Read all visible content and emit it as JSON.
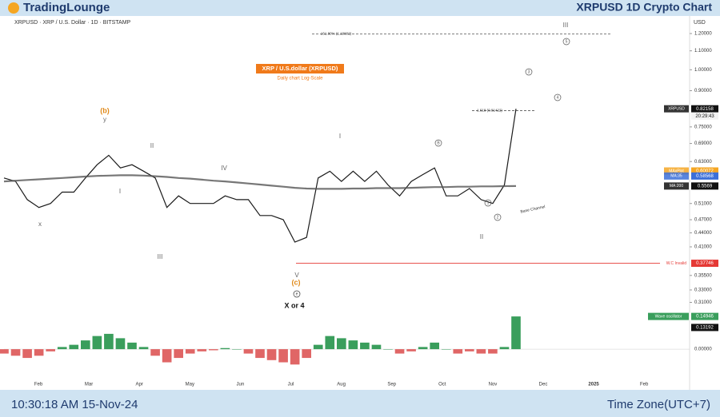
{
  "header": {
    "brand": "TradingLounge",
    "title": "XRPUSD 1D Crypto Chart",
    "symbol": "XRPUSD · XRP / U.S. Dollar · 1D · BITSTAMP",
    "footer_time": "10:30:18 AM 15-Nov-24",
    "footer_zone": "Time Zone(UTC+7)"
  },
  "chart_data": {
    "type": "line",
    "title": "XRP / U.S.dollar (XRPUSD)",
    "subtitle": "Daily chart  Log-Scale",
    "y_label": "USD",
    "log_scale": true,
    "xtick_labels": [
      "Feb",
      "Mar",
      "Apr",
      "May",
      "Jun",
      "Jul",
      "Aug",
      "Sep",
      "Oct",
      "Nov",
      "Dec",
      "2025",
      "Feb"
    ],
    "series": [
      {
        "name": "XRPUSD",
        "color": "#1a1a1a",
        "values": [
          0.58,
          0.57,
          0.52,
          0.5,
          0.51,
          0.54,
          0.54,
          0.58,
          0.62,
          0.65,
          0.61,
          0.62,
          0.6,
          0.58,
          0.5,
          0.53,
          0.51,
          0.51,
          0.51,
          0.53,
          0.52,
          0.52,
          0.48,
          0.48,
          0.47,
          0.42,
          0.43,
          0.58,
          0.6,
          0.57,
          0.6,
          0.57,
          0.6,
          0.56,
          0.53,
          0.57,
          0.59,
          0.61,
          0.53,
          0.53,
          0.55,
          0.52,
          0.51,
          0.56,
          0.82158
        ]
      },
      {
        "name": "MA:200",
        "color": "#555555",
        "values": [
          0.57,
          0.572,
          0.574,
          0.576,
          0.578,
          0.58,
          0.582,
          0.584,
          0.586,
          0.587,
          0.588,
          0.588,
          0.587,
          0.585,
          0.583,
          0.58,
          0.578,
          0.575,
          0.572,
          0.57,
          0.567,
          0.564,
          0.561,
          0.558,
          0.555,
          0.552,
          0.55,
          0.549,
          0.549,
          0.549,
          0.55,
          0.55,
          0.551,
          0.551,
          0.551,
          0.552,
          0.553,
          0.554,
          0.554,
          0.555,
          0.555,
          0.556,
          0.556,
          0.5565,
          0.5569
        ]
      }
    ],
    "ylim": [
      0.296,
      1.311
    ],
    "yticks": [
      {
        "value": 1.2,
        "label": "1.20000"
      },
      {
        "value": 1.1,
        "label": "1.10000"
      },
      {
        "value": 1.0,
        "label": "1.00000"
      },
      {
        "value": 0.9,
        "label": "0.90000"
      },
      {
        "value": 0.75,
        "label": "0.75000"
      },
      {
        "value": 0.69,
        "label": "0.69000"
      },
      {
        "value": 0.63,
        "label": "0.63000"
      },
      {
        "value": 0.51,
        "label": "0.51000"
      },
      {
        "value": 0.47,
        "label": "0.47000"
      },
      {
        "value": 0.44,
        "label": "0.44000"
      },
      {
        "value": 0.41,
        "label": "0.41000"
      },
      {
        "value": 0.355,
        "label": "0.35500"
      },
      {
        "value": 0.33,
        "label": "0.33000"
      },
      {
        "value": 0.31,
        "label": "0.31000"
      }
    ],
    "badges": [
      {
        "name": "XRPUSD",
        "value": 0.82158,
        "countdown": "20:29:43",
        "color": "#111111"
      },
      {
        "name": "MAxPlot",
        "value": 0.60072,
        "color": "#f5a623"
      },
      {
        "name": "MA:35",
        "value": 0.58568,
        "color": "#3b6fd8"
      },
      {
        "name": "MA:200",
        "value": 0.5569,
        "color": "#111111"
      },
      {
        "name": "W.C Invalid",
        "value": 0.37746,
        "color": "#e53935"
      }
    ],
    "levels": [
      {
        "label": "161.80% (1.19802)",
        "value": 1.19802
      },
      {
        "label": "1.618 (0.81422)",
        "value": 0.81422
      }
    ],
    "annotations": [
      "(b)",
      "y",
      "II",
      "I",
      "IV",
      "III",
      "x",
      "V",
      "(c)",
      "X or 4",
      "I",
      "II",
      "III",
      "3",
      "5",
      "4",
      "1",
      "2",
      "B",
      "Base Channel",
      "e"
    ],
    "oscillator": {
      "type": "bar",
      "name": "Wave oscillator",
      "values": [
        -0.02,
        -0.03,
        -0.04,
        -0.03,
        -0.01,
        0.01,
        0.02,
        0.04,
        0.06,
        0.07,
        0.05,
        0.03,
        0.01,
        -0.03,
        -0.06,
        -0.04,
        -0.02,
        -0.01,
        -0.005,
        0.005,
        0.0,
        -0.02,
        -0.04,
        -0.05,
        -0.06,
        -0.07,
        -0.04,
        0.02,
        0.06,
        0.05,
        0.04,
        0.03,
        0.02,
        0.0,
        -0.02,
        -0.01,
        0.01,
        0.03,
        0.0,
        -0.02,
        -0.01,
        -0.02,
        -0.02,
        0.01,
        0.14946
      ],
      "signal": 0.13192,
      "ylim": [
        -0.12,
        0.19
      ],
      "yticks": [
        {
          "value": 0,
          "label": "0.00000"
        }
      ],
      "up_color": "#3a9e5c",
      "down_color": "#e06666"
    }
  }
}
